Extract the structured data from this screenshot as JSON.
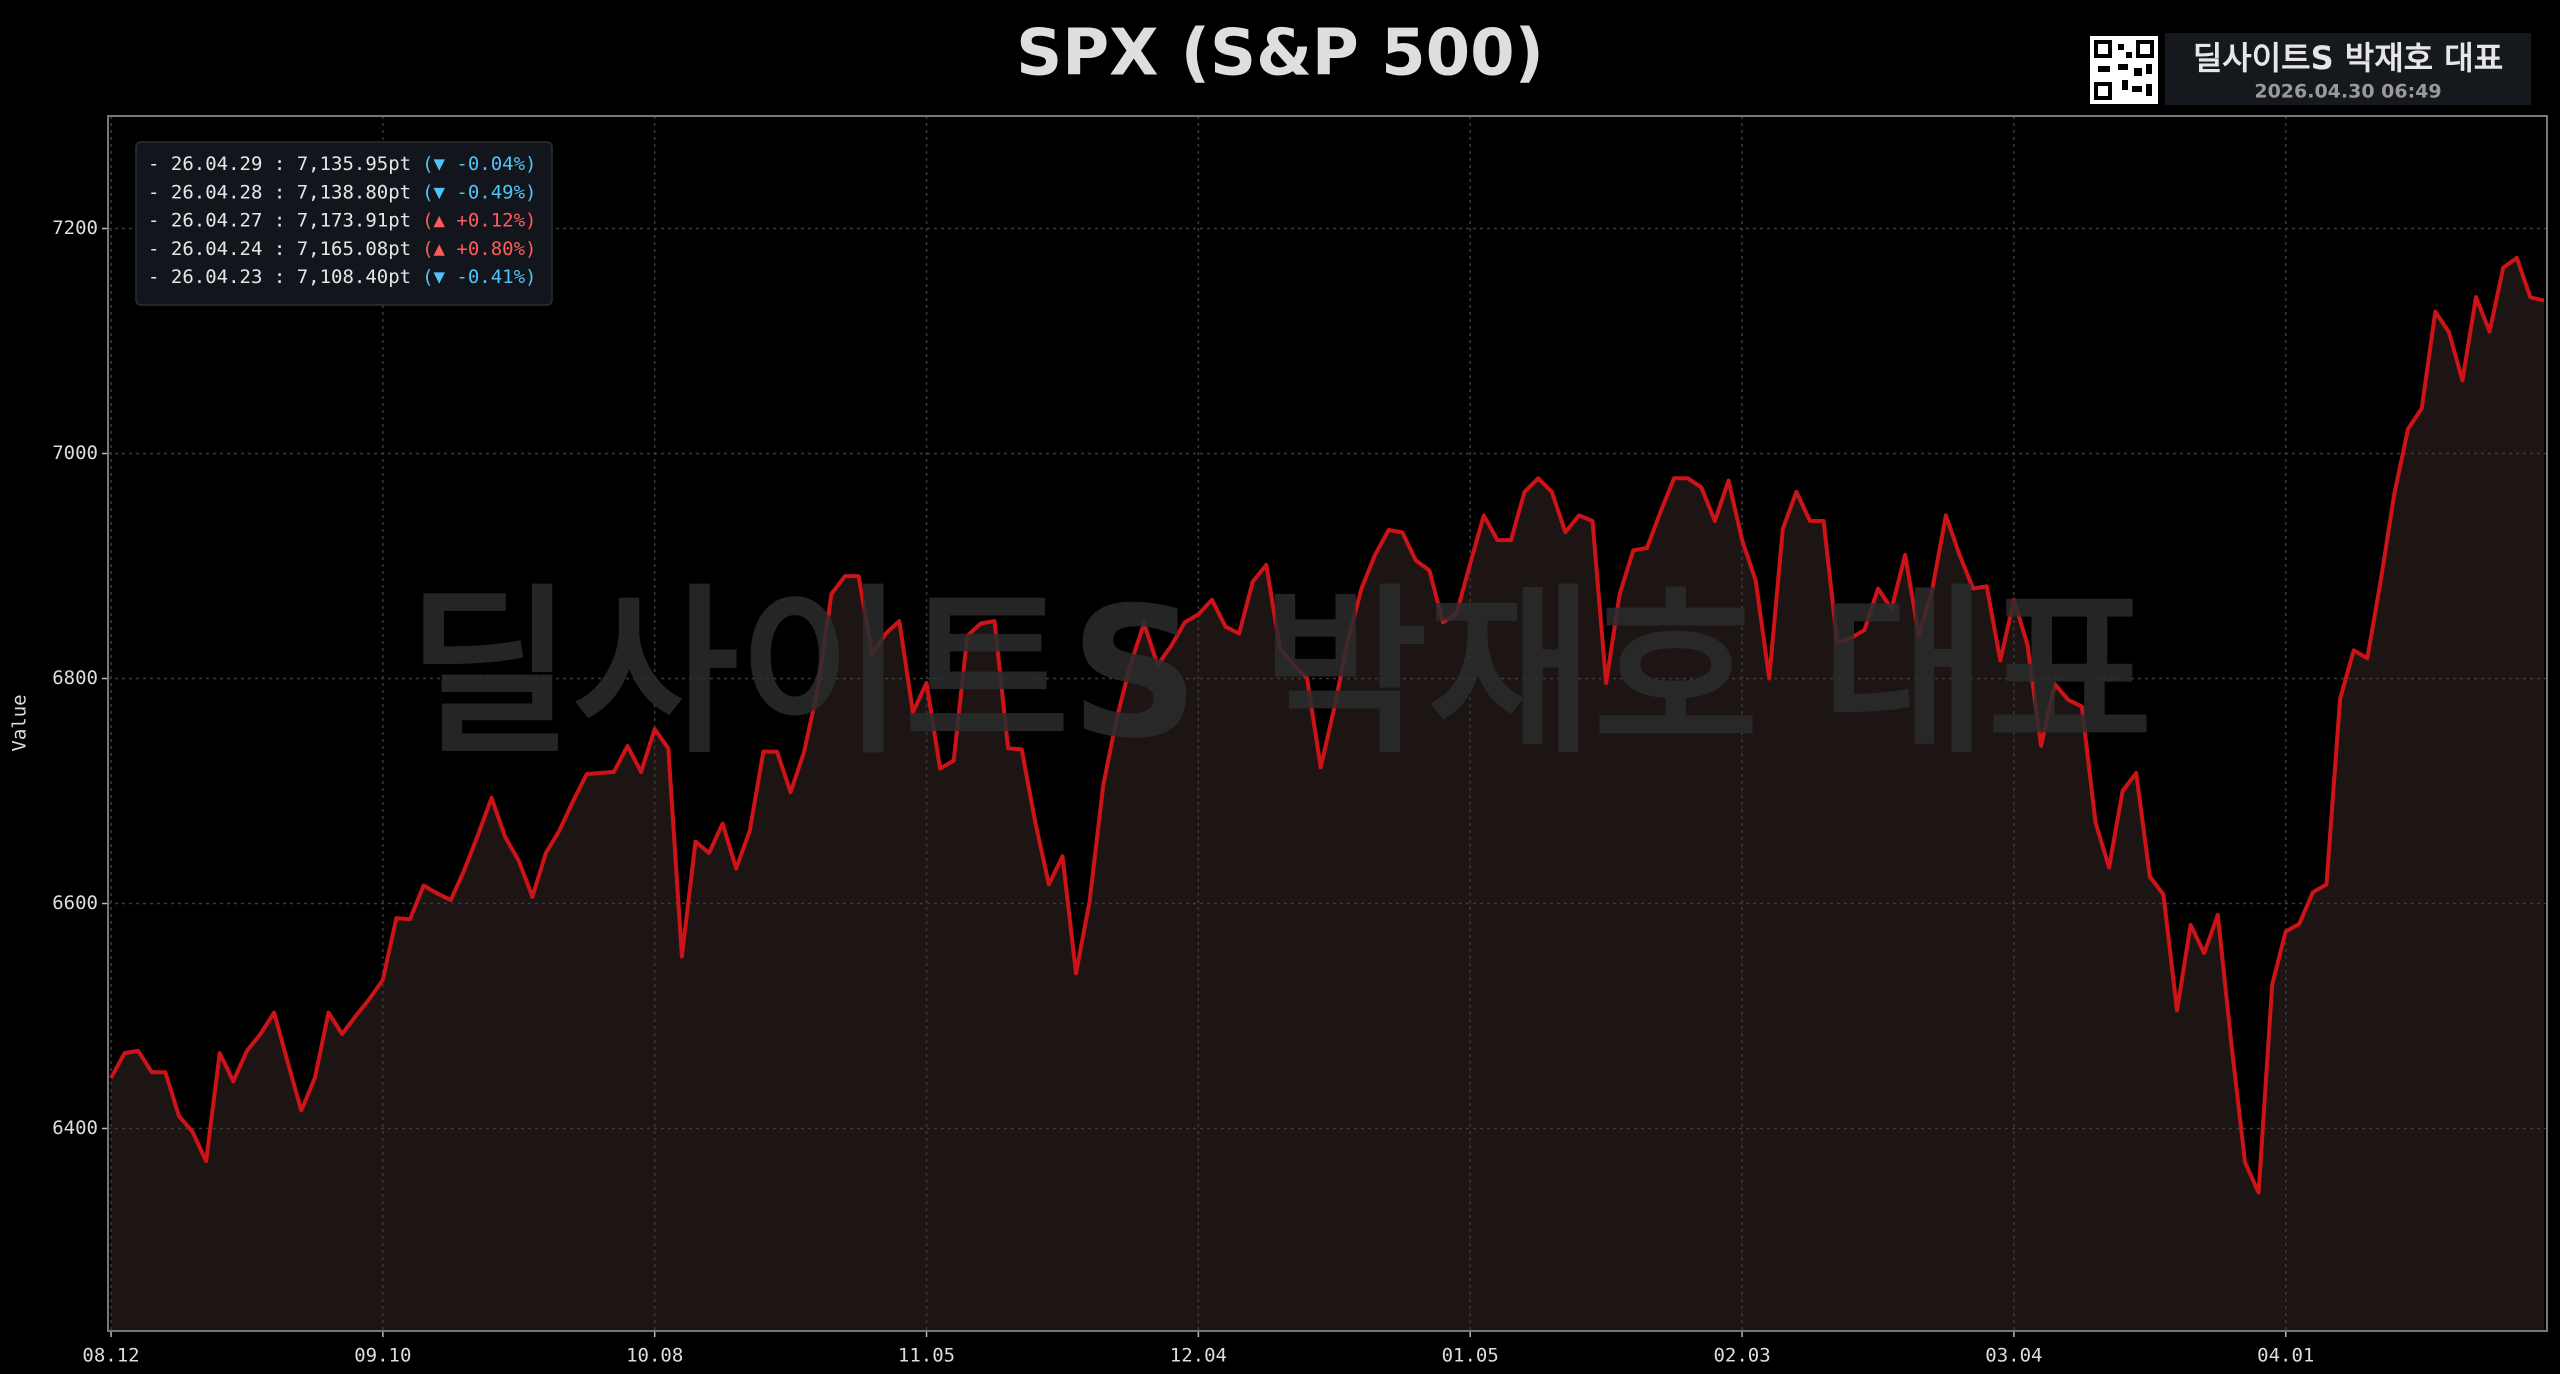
{
  "header": {
    "title": "SPX (S&P 500)",
    "brand": "딜사이트S 박재호 대표",
    "timestamp": "2026.04.30 06:49"
  },
  "legend": [
    {
      "date": "- 26.04.29 : 7,135.95pt",
      "change": "(▼ -0.04%)",
      "color": "#4fc3f7"
    },
    {
      "date": "- 26.04.28 : 7,138.80pt",
      "change": "(▼ -0.49%)",
      "color": "#4fc3f7"
    },
    {
      "date": "- 26.04.27 : 7,173.91pt",
      "change": "(▲ +0.12%)",
      "color": "#ff5b5b"
    },
    {
      "date": "- 26.04.24 : 7,165.08pt",
      "change": "(▲ +0.80%)",
      "color": "#ff5b5b"
    },
    {
      "date": "- 26.04.23 : 7,108.40pt",
      "change": "(▼ -0.41%)",
      "color": "#4fc3f7"
    }
  ],
  "chart_data": {
    "type": "line",
    "ylabel": "Value",
    "color": "#cc1418",
    "area_color": "#1d1414",
    "grid": true,
    "ylim": [
      6220,
      7300
    ],
    "yticks": [
      6400,
      6600,
      6800,
      7000,
      7200
    ],
    "categories": [
      "08.12",
      null,
      null,
      null,
      null,
      null,
      null,
      null,
      null,
      null,
      null,
      null,
      null,
      null,
      null,
      null,
      null,
      null,
      null,
      null,
      "09.10",
      null,
      null,
      null,
      null,
      null,
      null,
      null,
      null,
      null,
      null,
      null,
      null,
      null,
      null,
      null,
      null,
      null,
      null,
      null,
      "10.08",
      null,
      null,
      null,
      null,
      null,
      null,
      null,
      null,
      null,
      null,
      null,
      null,
      null,
      null,
      null,
      null,
      null,
      null,
      null,
      "11.05",
      null,
      null,
      null,
      null,
      null,
      null,
      null,
      null,
      null,
      null,
      null,
      null,
      null,
      null,
      null,
      null,
      null,
      null,
      null,
      "12.04",
      null,
      null,
      null,
      null,
      null,
      null,
      null,
      null,
      null,
      null,
      null,
      null,
      null,
      null,
      null,
      null,
      null,
      null,
      null,
      "01.05",
      null,
      null,
      null,
      null,
      null,
      null,
      null,
      null,
      null,
      null,
      null,
      null,
      null,
      null,
      null,
      null,
      null,
      null,
      null,
      "02.03",
      null,
      null,
      null,
      null,
      null,
      null,
      null,
      null,
      null,
      null,
      null,
      null,
      null,
      null,
      null,
      null,
      null,
      null,
      null,
      "03.04",
      null,
      null,
      null,
      null,
      null,
      null,
      null,
      null,
      null,
      null,
      null,
      null,
      null,
      null,
      null,
      null,
      null,
      null,
      null,
      "04.01",
      null,
      null,
      null,
      null,
      null,
      null,
      null,
      null,
      null,
      null,
      null,
      null,
      null,
      null,
      null,
      null,
      null,
      null,
      null
    ],
    "values": [
      6445,
      6467,
      6469,
      6450,
      6450,
      6411,
      6397,
      6371,
      6467,
      6442,
      6469,
      6484,
      6503,
      6459,
      6416,
      6445,
      6503,
      6484,
      6500,
      6515,
      6532,
      6587,
      6586,
      6616,
      6609,
      6603,
      6630,
      6661,
      6694,
      6659,
      6638,
      6606,
      6645,
      6665,
      6691,
      6715,
      6716,
      6717,
      6740,
      6717,
      6755,
      6738,
      6553,
      6655,
      6645,
      6671,
      6631,
      6665,
      6735,
      6735,
      6699,
      6735,
      6791,
      6875,
      6891,
      6891,
      6822,
      6840,
      6851,
      6770,
      6796,
      6720,
      6727,
      6838,
      6849,
      6851,
      6738,
      6737,
      6672,
      6617,
      6642,
      6538,
      6602,
      6705,
      6765,
      6812,
      6849,
      6812,
      6829,
      6850,
      6857,
      6870,
      6846,
      6840,
      6886,
      6901,
      6827,
      6812,
      6800,
      6721,
      6774,
      6834,
      6880,
      6910,
      6932,
      6930,
      6905,
      6896,
      6850,
      6858,
      6902,
      6945,
      6923,
      6923,
      6966,
      6978,
      6966,
      6930,
      6945,
      6940,
      6796,
      6875,
      6914,
      6916,
      6948,
      6978,
      6978,
      6970,
      6940,
      6976,
      6923,
      6887,
      6800,
      6933,
      6966,
      6940,
      6940,
      6832,
      6836,
      6843,
      6880,
      6862,
      6910,
      6838,
      6880,
      6945,
      6910,
      6880,
      6882,
      6816,
      6870,
      6830,
      6740,
      6795,
      6781,
      6775,
      6672,
      6632,
      6700,
      6716,
      6624,
      6608,
      6505,
      6581,
      6556,
      6590,
      6475,
      6370,
      6343,
      6528,
      6575,
      6582,
      6610,
      6617,
      6782,
      6825,
      6818,
      6888,
      6965,
      7022,
      7040,
      7126,
      7108,
      7065,
      7139,
      7108.4,
      7165.08,
      7173.91,
      7138.8,
      7135.95
    ]
  }
}
